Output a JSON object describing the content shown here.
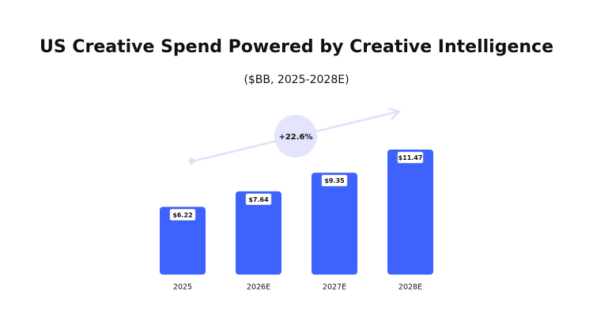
{
  "chart_data": {
    "type": "bar",
    "title": "US Creative Spend Powered by Creative Intelligence",
    "subtitle": "($BB, 2025-2028E)",
    "annotation": "+22.6%",
    "categories": [
      "2025",
      "2026E",
      "2027E",
      "2028E"
    ],
    "values": [
      6.22,
      7.64,
      9.35,
      11.47
    ],
    "value_labels": [
      "$6.22",
      "$7.64",
      "$9.35",
      "$11.47"
    ],
    "color": "#3d62fd"
  }
}
